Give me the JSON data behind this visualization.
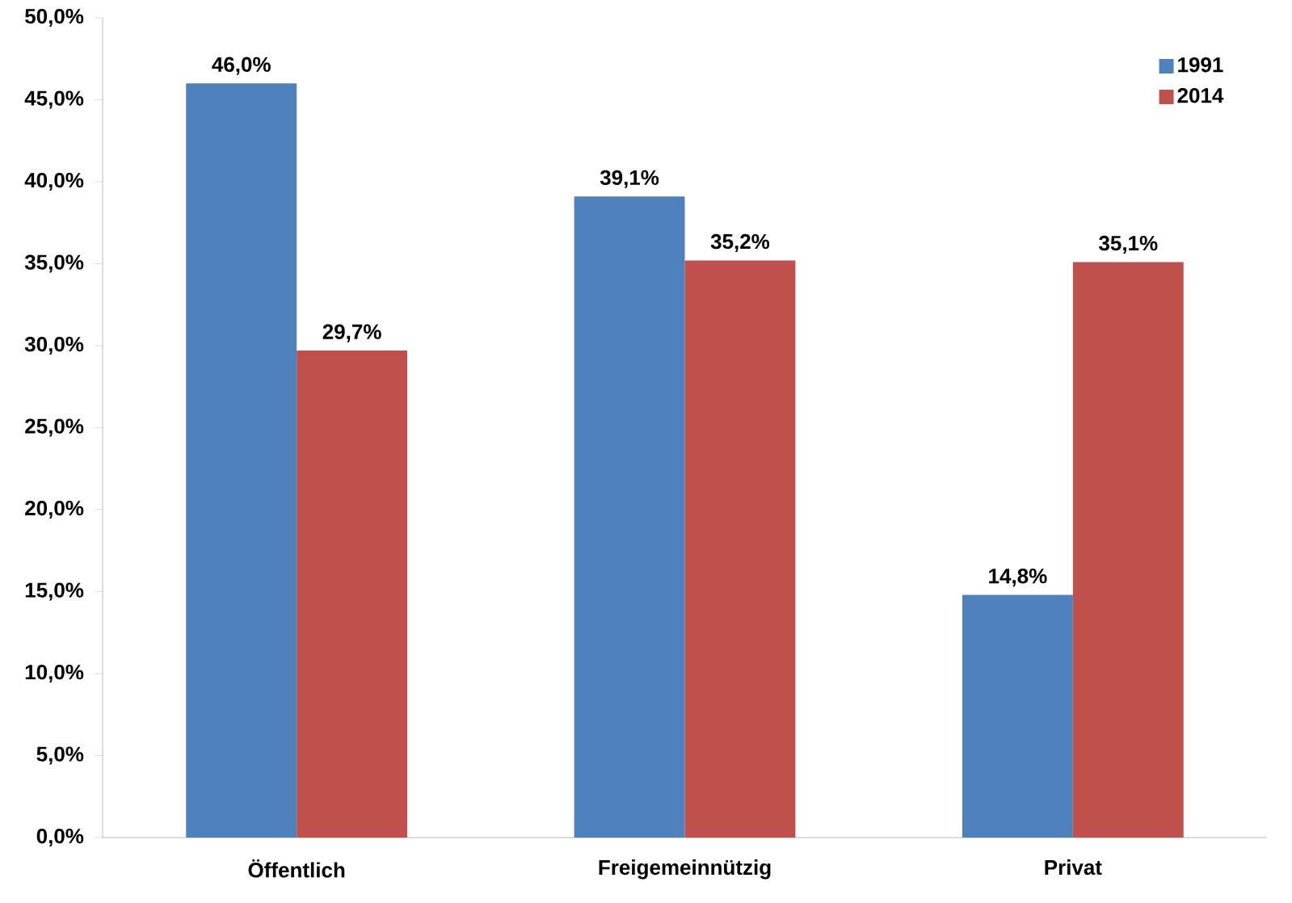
{
  "chart_data": {
    "type": "bar",
    "categories": [
      "Öffentlich",
      "Freigemeinnützig",
      "Privat"
    ],
    "series": [
      {
        "name": "1991",
        "color": "#4f81bd",
        "values": [
          46.0,
          39.1,
          14.8
        ],
        "value_labels": [
          "46,0%",
          "39,1%",
          "14,8%"
        ]
      },
      {
        "name": "2014",
        "color": "#c0504d",
        "values": [
          29.7,
          35.2,
          35.1
        ],
        "value_labels": [
          "29,7%",
          "35,2%",
          "35,1%"
        ]
      }
    ],
    "ylim": [
      0,
      50
    ],
    "yticks": [
      {
        "value": 0,
        "label": "0,0%"
      },
      {
        "value": 5,
        "label": "5,0%"
      },
      {
        "value": 10,
        "label": "10,0%"
      },
      {
        "value": 15,
        "label": "15,0%"
      },
      {
        "value": 20,
        "label": "20,0%"
      },
      {
        "value": 25,
        "label": "25,0%"
      },
      {
        "value": 30,
        "label": "30,0%"
      },
      {
        "value": 35,
        "label": "35,0%"
      },
      {
        "value": 40,
        "label": "40,0%"
      },
      {
        "value": 45,
        "label": "45,0%"
      },
      {
        "value": 50,
        "label": "50,0%"
      }
    ],
    "legend": "top right",
    "grid": false
  }
}
